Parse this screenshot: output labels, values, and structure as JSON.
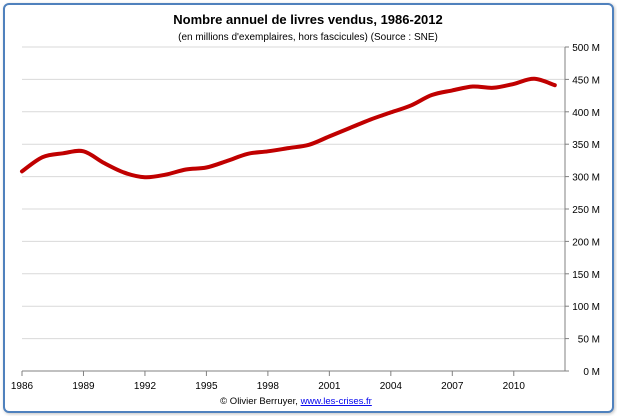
{
  "chart_data": {
    "type": "line",
    "title": "Nombre annuel de livres vendus, 1986-2012",
    "subtitle": "(en millions d'exemplaires, hors fascicules) (Source : SNE)",
    "xlabel": "",
    "ylabel": "",
    "xlim": [
      1986,
      2012.5
    ],
    "ylim": [
      0,
      500
    ],
    "x_ticks": [
      "1986",
      "1989",
      "1992",
      "1995",
      "1998",
      "2001",
      "2004",
      "2007",
      "2010"
    ],
    "y_ticks": [
      "0 M",
      "50 M",
      "100 M",
      "150 M",
      "200 M",
      "250 M",
      "300 M",
      "350 M",
      "400 M",
      "450 M",
      "500 M"
    ],
    "grid": true,
    "line_color": "#c00000",
    "x": [
      1986,
      1987,
      1988,
      1989,
      1990,
      1991,
      1992,
      1993,
      1994,
      1995,
      1996,
      1997,
      1998,
      1999,
      2000,
      2001,
      2002,
      2003,
      2004,
      2005,
      2006,
      2007,
      2008,
      2009,
      2010,
      2011,
      2012
    ],
    "values": [
      308,
      330,
      336,
      339,
      321,
      306,
      299,
      303,
      311,
      314,
      324,
      335,
      339,
      344,
      349,
      362,
      375,
      388,
      399,
      410,
      426,
      433,
      439,
      437,
      443,
      451,
      441
    ]
  },
  "footer": {
    "credit": "© Olivier Berruyer, ",
    "link": "www.les-crises.fr"
  }
}
